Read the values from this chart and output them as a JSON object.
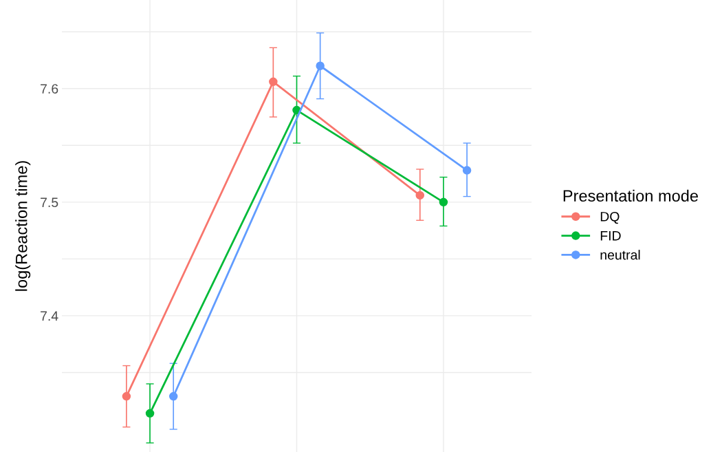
{
  "chart_data": {
    "type": "line",
    "ylabel": "log(Reaction time)",
    "legend_title": "Presentation mode",
    "categories": [
      null,
      null,
      null
    ],
    "series": [
      {
        "name": "DQ",
        "color": "#f8766d",
        "values": [
          7.329,
          7.606,
          7.506
        ],
        "errors": [
          [
            7.302,
            7.356
          ],
          [
            7.575,
            7.636
          ],
          [
            7.484,
            7.529
          ]
        ]
      },
      {
        "name": "FID",
        "color": "#00ba38",
        "values": [
          7.314,
          7.581,
          7.5
        ],
        "errors": [
          [
            7.288,
            7.34
          ],
          [
            7.552,
            7.611
          ],
          [
            7.479,
            7.522
          ]
        ]
      },
      {
        "name": "neutral",
        "color": "#619cff",
        "values": [
          7.329,
          7.62,
          7.528
        ],
        "errors": [
          [
            7.3,
            7.358
          ],
          [
            7.591,
            7.649
          ],
          [
            7.505,
            7.552
          ]
        ]
      }
    ],
    "ylim": [
      7.28,
      7.678
    ],
    "yticks": [
      {
        "value": 7.35,
        "label": null
      },
      7.4,
      {
        "value": 7.45,
        "label": null
      },
      7.5,
      {
        "value": 7.55,
        "label": null
      },
      7.6,
      {
        "value": 7.65,
        "label": null
      }
    ],
    "tick_labels": "y",
    "grid": true,
    "legend": "right",
    "marker": "circle",
    "line_style": "solid"
  }
}
